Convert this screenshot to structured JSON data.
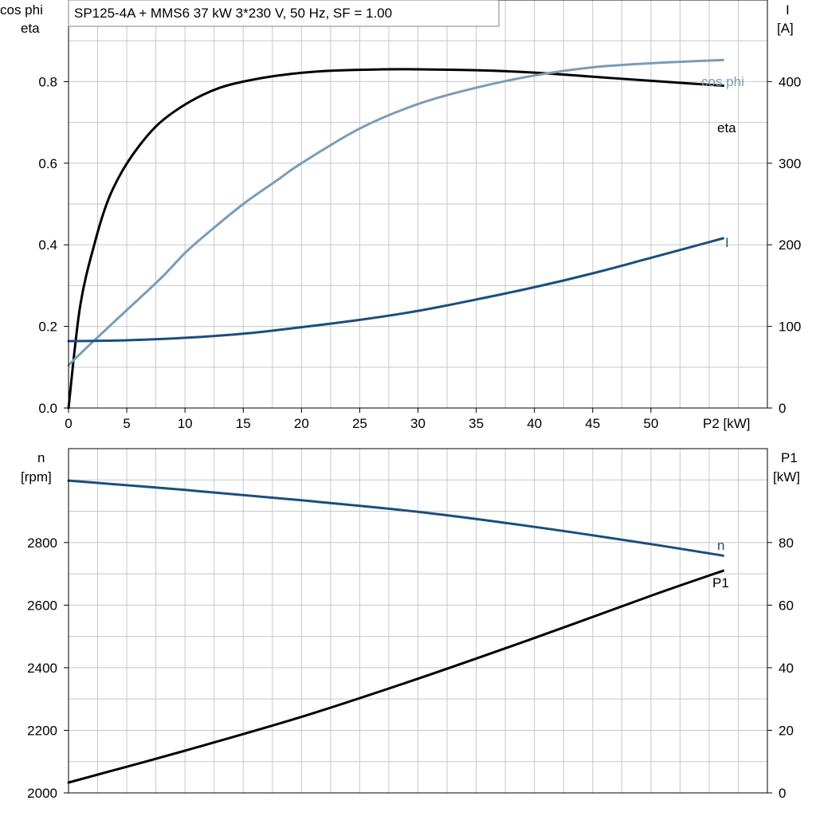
{
  "chart_data": [
    {
      "type": "line",
      "title": "SP125-4A + MMS6   37 kW   3*230 V, 50 Hz, SF = 1.00",
      "xlabel": "P2 [kW]",
      "ylabel_left": [
        "cos phi",
        "eta"
      ],
      "ylabel_right": [
        "I",
        "[A]"
      ],
      "xlim": [
        0,
        60
      ],
      "ylim_left": [
        0,
        1.0
      ],
      "ylim_right": [
        0,
        500
      ],
      "x_ticks": [
        0,
        5,
        10,
        15,
        20,
        25,
        30,
        35,
        40,
        45,
        50
      ],
      "x_tick_labels": [
        "0",
        "5",
        "10",
        "15",
        "20",
        "25",
        "30",
        "35",
        "40",
        "45",
        "50"
      ],
      "y_left_ticks": [
        0.0,
        0.2,
        0.4,
        0.6,
        0.8
      ],
      "y_left_tick_labels": [
        "0.0",
        "0.2",
        "0.4",
        "0.6",
        "0.8"
      ],
      "y_right_ticks": [
        0,
        100,
        200,
        300,
        400
      ],
      "y_right_tick_labels": [
        "0",
        "100",
        "200",
        "300",
        "400"
      ],
      "grid": true,
      "series": [
        {
          "name": "eta",
          "axis": "left",
          "color": "#000000",
          "points": [
            [
              0,
              0.0
            ],
            [
              1,
              0.25
            ],
            [
              2.3,
              0.41
            ],
            [
              3.4,
              0.51
            ],
            [
              4.6,
              0.58
            ],
            [
              6,
              0.64
            ],
            [
              7.5,
              0.69
            ],
            [
              9,
              0.725
            ],
            [
              11,
              0.76
            ],
            [
              13,
              0.785
            ],
            [
              15,
              0.8
            ],
            [
              18,
              0.815
            ],
            [
              22,
              0.826
            ],
            [
              27,
              0.83
            ],
            [
              30,
              0.83
            ],
            [
              35,
              0.828
            ],
            [
              40,
              0.822
            ],
            [
              45,
              0.812
            ],
            [
              50,
              0.802
            ],
            [
              56.2,
              0.79
            ]
          ]
        },
        {
          "name": "cos phi",
          "axis": "left",
          "color": "#7a9cb9",
          "points": [
            [
              0,
              0.105
            ],
            [
              2,
              0.16
            ],
            [
              5,
              0.24
            ],
            [
              8,
              0.32
            ],
            [
              10,
              0.38
            ],
            [
              12,
              0.43
            ],
            [
              15,
              0.5
            ],
            [
              18,
              0.56
            ],
            [
              20,
              0.6
            ],
            [
              25,
              0.685
            ],
            [
              30,
              0.745
            ],
            [
              35,
              0.785
            ],
            [
              40,
              0.815
            ],
            [
              45,
              0.835
            ],
            [
              50,
              0.845
            ],
            [
              56.2,
              0.853
            ]
          ]
        },
        {
          "name": "I",
          "axis": "right",
          "color": "#1a4e7e",
          "points": [
            [
              0,
              82
            ],
            [
              5,
              83
            ],
            [
              10,
              86
            ],
            [
              15,
              91
            ],
            [
              20,
              99
            ],
            [
              25,
              108
            ],
            [
              30,
              119
            ],
            [
              35,
              133
            ],
            [
              40,
              148
            ],
            [
              45,
              165
            ],
            [
              50,
              184
            ],
            [
              56.2,
              208
            ]
          ]
        }
      ],
      "curve_labels": {
        "eta": "eta",
        "cos_phi": "cos phi",
        "I": "I"
      }
    },
    {
      "type": "line",
      "xlim": [
        0,
        60
      ],
      "ylabel_left": [
        "n",
        "[rpm]"
      ],
      "ylabel_right": [
        "P1",
        "[kW]"
      ],
      "ylim_left": [
        2000,
        3100
      ],
      "ylim_right": [
        0,
        110
      ],
      "y_left_ticks": [
        2000,
        2200,
        2400,
        2600,
        2800
      ],
      "y_left_tick_labels": [
        "2000",
        "2200",
        "2400",
        "2600",
        "2800"
      ],
      "y_right_ticks": [
        0,
        20,
        40,
        60,
        80
      ],
      "y_right_tick_labels": [
        "0",
        "20",
        "40",
        "60",
        "80"
      ],
      "grid": true,
      "series": [
        {
          "name": "n",
          "axis": "left",
          "color": "#1a4e7e",
          "points": [
            [
              0,
              2998
            ],
            [
              10,
              2968
            ],
            [
              20,
              2935
            ],
            [
              30,
              2898
            ],
            [
              40,
              2850
            ],
            [
              50,
              2795
            ],
            [
              56.2,
              2758
            ]
          ]
        },
        {
          "name": "P1",
          "axis": "right",
          "color": "#000000",
          "points": [
            [
              0,
              3.3
            ],
            [
              10,
              13.5
            ],
            [
              20,
              24.3
            ],
            [
              30,
              36.5
            ],
            [
              40,
              49.5
            ],
            [
              50,
              63
            ],
            [
              56.2,
              71
            ]
          ]
        }
      ],
      "curve_labels": {
        "n": "n",
        "P1": "P1"
      }
    }
  ]
}
